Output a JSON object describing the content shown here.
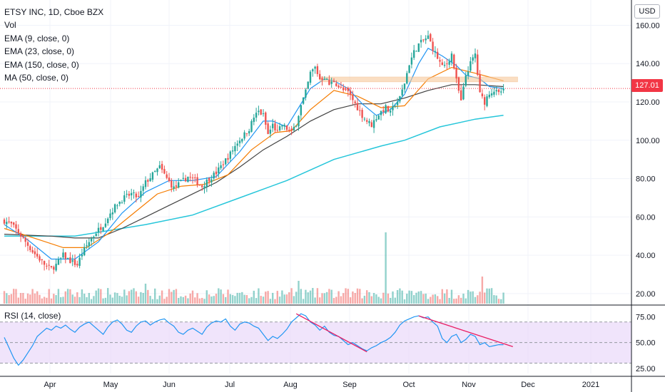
{
  "header": {
    "title": "ETSY INC, 1D, Cboe BZX",
    "indicators": [
      "Vol",
      "EMA (9, close, 0)",
      "EMA (23, close, 0)",
      "EMA (150, close, 0)",
      "MA (50, close, 0)"
    ],
    "rsi_label": "RSI (14, close)",
    "currency_button": "USD",
    "last_price": "127.01"
  },
  "colors": {
    "up": "#26a69a",
    "down": "#ef5350",
    "ema9": "#2196f3",
    "ema23": "#f57c00",
    "ema150": "#26c6da",
    "ma50": "#424242",
    "rsi": "#2196f3",
    "rsi_band": "#e9d8fa",
    "trendline": "#e91e63",
    "zone": "#f7c99a",
    "last_price": "#f23645"
  },
  "chart_data": {
    "type": "candlestick",
    "y_axis_ticks": [
      "20.00",
      "40.00",
      "60.00",
      "80.00",
      "100.00",
      "120.00",
      "140.00",
      "160.00"
    ],
    "ylim": [
      17,
      165
    ],
    "rsi_axis_ticks": [
      "25.00",
      "50.00",
      "75.00"
    ],
    "rsi_ylim": [
      20,
      83
    ],
    "x_axis_labels": [
      "Apr",
      "May",
      "Jun",
      "Jul",
      "Aug",
      "Sep",
      "Oct",
      "Nov",
      "Dec",
      "2021"
    ],
    "last_price": 127.01,
    "resistance_zone": [
      130.5,
      133
    ],
    "close_path": [
      [
        0,
        58
      ],
      [
        3,
        56
      ],
      [
        6,
        52
      ],
      [
        9,
        47
      ],
      [
        12,
        42
      ],
      [
        15,
        38
      ],
      [
        18,
        34
      ],
      [
        20,
        33
      ],
      [
        22,
        35
      ],
      [
        25,
        40
      ],
      [
        28,
        37
      ],
      [
        31,
        35
      ],
      [
        33,
        41
      ],
      [
        36,
        47
      ],
      [
        39,
        52
      ],
      [
        42,
        56
      ],
      [
        45,
        62
      ],
      [
        48,
        67
      ],
      [
        51,
        70
      ],
      [
        54,
        72
      ],
      [
        57,
        70
      ],
      [
        60,
        78
      ],
      [
        63,
        82
      ],
      [
        66,
        86
      ],
      [
        69,
        80
      ],
      [
        72,
        75
      ],
      [
        75,
        78
      ],
      [
        78,
        81
      ],
      [
        81,
        79
      ],
      [
        84,
        76
      ],
      [
        87,
        80
      ],
      [
        90,
        83
      ],
      [
        93,
        88
      ],
      [
        96,
        93
      ],
      [
        99,
        99
      ],
      [
        102,
        103
      ],
      [
        104,
        106
      ],
      [
        106,
        112
      ],
      [
        108,
        115
      ],
      [
        110,
        113
      ],
      [
        112,
        103
      ],
      [
        114,
        108
      ],
      [
        116,
        104
      ],
      [
        118,
        108
      ],
      [
        120,
        106
      ],
      [
        122,
        104
      ],
      [
        124,
        109
      ],
      [
        126,
        118
      ],
      [
        128,
        125
      ],
      [
        130,
        135
      ],
      [
        132,
        138
      ],
      [
        134,
        132
      ],
      [
        136,
        133
      ],
      [
        138,
        129
      ],
      [
        140,
        131
      ],
      [
        142,
        128
      ],
      [
        144,
        126
      ],
      [
        146,
        125
      ],
      [
        148,
        121
      ],
      [
        150,
        117
      ],
      [
        152,
        113
      ],
      [
        154,
        110
      ],
      [
        156,
        108
      ],
      [
        158,
        112
      ],
      [
        160,
        115
      ],
      [
        162,
        117
      ],
      [
        164,
        114
      ],
      [
        166,
        119
      ],
      [
        168,
        122
      ],
      [
        170,
        130
      ],
      [
        172,
        140
      ],
      [
        174,
        146
      ],
      [
        176,
        150
      ],
      [
        178,
        152
      ],
      [
        180,
        154
      ],
      [
        182,
        148
      ],
      [
        184,
        143
      ],
      [
        186,
        138
      ],
      [
        188,
        140
      ],
      [
        190,
        145
      ],
      [
        192,
        131
      ],
      [
        194,
        120
      ],
      [
        196,
        134
      ],
      [
        198,
        140
      ],
      [
        200,
        145
      ],
      [
        202,
        124
      ],
      [
        204,
        120
      ],
      [
        206,
        125
      ],
      [
        208,
        126
      ],
      [
        210,
        124
      ],
      [
        212,
        127.01
      ]
    ],
    "ema9_path": [
      [
        0,
        56
      ],
      [
        10,
        48
      ],
      [
        20,
        38
      ],
      [
        30,
        38
      ],
      [
        40,
        47
      ],
      [
        50,
        62
      ],
      [
        60,
        73
      ],
      [
        70,
        79
      ],
      [
        80,
        79
      ],
      [
        90,
        81
      ],
      [
        100,
        94
      ],
      [
        110,
        110
      ],
      [
        114,
        110
      ],
      [
        120,
        107
      ],
      [
        130,
        127
      ],
      [
        136,
        132
      ],
      [
        140,
        131
      ],
      [
        146,
        127
      ],
      [
        152,
        119
      ],
      [
        158,
        113
      ],
      [
        164,
        116
      ],
      [
        170,
        124
      ],
      [
        176,
        140
      ],
      [
        180,
        148
      ],
      [
        186,
        144
      ],
      [
        192,
        139
      ],
      [
        196,
        134
      ],
      [
        202,
        132
      ],
      [
        206,
        128
      ],
      [
        212,
        127
      ]
    ],
    "ema23_path": [
      [
        0,
        54
      ],
      [
        15,
        48
      ],
      [
        25,
        44
      ],
      [
        35,
        44
      ],
      [
        45,
        52
      ],
      [
        55,
        62
      ],
      [
        65,
        72
      ],
      [
        75,
        76
      ],
      [
        85,
        77
      ],
      [
        95,
        82
      ],
      [
        105,
        95
      ],
      [
        115,
        104
      ],
      [
        122,
        105
      ],
      [
        130,
        116
      ],
      [
        140,
        126
      ],
      [
        150,
        123
      ],
      [
        160,
        117
      ],
      [
        170,
        118
      ],
      [
        180,
        132
      ],
      [
        190,
        138
      ],
      [
        200,
        135
      ],
      [
        212,
        131
      ]
    ],
    "ma50_path": [
      [
        0,
        51
      ],
      [
        20,
        50
      ],
      [
        30,
        49
      ],
      [
        40,
        49
      ],
      [
        50,
        54
      ],
      [
        60,
        60
      ],
      [
        70,
        66
      ],
      [
        80,
        72
      ],
      [
        90,
        78
      ],
      [
        100,
        86
      ],
      [
        110,
        95
      ],
      [
        120,
        102
      ],
      [
        130,
        110
      ],
      [
        140,
        116
      ],
      [
        150,
        119
      ],
      [
        160,
        119
      ],
      [
        170,
        122
      ],
      [
        180,
        126
      ],
      [
        190,
        129
      ],
      [
        200,
        129
      ],
      [
        212,
        128
      ]
    ],
    "ema150_path": [
      [
        0,
        50
      ],
      [
        20,
        50
      ],
      [
        30,
        50
      ],
      [
        40,
        52
      ],
      [
        60,
        56
      ],
      [
        80,
        61
      ],
      [
        100,
        70
      ],
      [
        120,
        79
      ],
      [
        140,
        90
      ],
      [
        160,
        97
      ],
      [
        170,
        100
      ],
      [
        185,
        107
      ],
      [
        200,
        111
      ],
      [
        212,
        113
      ]
    ],
    "rsi_path": [
      [
        0,
        55
      ],
      [
        2,
        45
      ],
      [
        4,
        35
      ],
      [
        6,
        28
      ],
      [
        8,
        33
      ],
      [
        10,
        40
      ],
      [
        12,
        47
      ],
      [
        14,
        56
      ],
      [
        16,
        60
      ],
      [
        18,
        64
      ],
      [
        20,
        62
      ],
      [
        22,
        66
      ],
      [
        24,
        64
      ],
      [
        26,
        67
      ],
      [
        28,
        63
      ],
      [
        30,
        60
      ],
      [
        32,
        65
      ],
      [
        34,
        68
      ],
      [
        36,
        70
      ],
      [
        38,
        66
      ],
      [
        40,
        62
      ],
      [
        42,
        58
      ],
      [
        44,
        65
      ],
      [
        46,
        70
      ],
      [
        48,
        72
      ],
      [
        50,
        68
      ],
      [
        52,
        62
      ],
      [
        54,
        60
      ],
      [
        56,
        66
      ],
      [
        58,
        70
      ],
      [
        60,
        71
      ],
      [
        62,
        67
      ],
      [
        64,
        70
      ],
      [
        66,
        72
      ],
      [
        68,
        73
      ],
      [
        70,
        69
      ],
      [
        72,
        66
      ],
      [
        74,
        60
      ],
      [
        76,
        58
      ],
      [
        78,
        62
      ],
      [
        80,
        64
      ],
      [
        82,
        61
      ],
      [
        84,
        58
      ],
      [
        86,
        65
      ],
      [
        88,
        69
      ],
      [
        90,
        71
      ],
      [
        92,
        70
      ],
      [
        94,
        73
      ],
      [
        96,
        66
      ],
      [
        98,
        62
      ],
      [
        100,
        68
      ],
      [
        102,
        70
      ],
      [
        104,
        69
      ],
      [
        106,
        66
      ],
      [
        108,
        64
      ],
      [
        110,
        58
      ],
      [
        112,
        52
      ],
      [
        114,
        56
      ],
      [
        116,
        54
      ],
      [
        118,
        58
      ],
      [
        120,
        63
      ],
      [
        122,
        70
      ],
      [
        124,
        74
      ],
      [
        126,
        78
      ],
      [
        128,
        76
      ],
      [
        130,
        70
      ],
      [
        132,
        67
      ],
      [
        134,
        62
      ],
      [
        136,
        66
      ],
      [
        138,
        60
      ],
      [
        140,
        57
      ],
      [
        142,
        56
      ],
      [
        144,
        52
      ],
      [
        146,
        48
      ],
      [
        148,
        50
      ],
      [
        150,
        47
      ],
      [
        152,
        44
      ],
      [
        154,
        42
      ],
      [
        156,
        45
      ],
      [
        158,
        47
      ],
      [
        160,
        50
      ],
      [
        162,
        52
      ],
      [
        164,
        55
      ],
      [
        166,
        60
      ],
      [
        168,
        67
      ],
      [
        170,
        71
      ],
      [
        172,
        73
      ],
      [
        174,
        75
      ],
      [
        176,
        76
      ],
      [
        178,
        74
      ],
      [
        180,
        75
      ],
      [
        182,
        70
      ],
      [
        184,
        66
      ],
      [
        186,
        54
      ],
      [
        188,
        50
      ],
      [
        190,
        56
      ],
      [
        192,
        58
      ],
      [
        194,
        50
      ],
      [
        196,
        53
      ],
      [
        198,
        58
      ],
      [
        200,
        56
      ],
      [
        202,
        48
      ],
      [
        204,
        50
      ],
      [
        206,
        46
      ],
      [
        208,
        47
      ],
      [
        210,
        48
      ],
      [
        212,
        48
      ]
    ],
    "rsi_trendlines": [
      [
        [
          124,
          78
        ],
        [
          154,
          41
        ]
      ],
      [
        [
          176,
          76
        ],
        [
          216,
          46
        ]
      ]
    ]
  }
}
